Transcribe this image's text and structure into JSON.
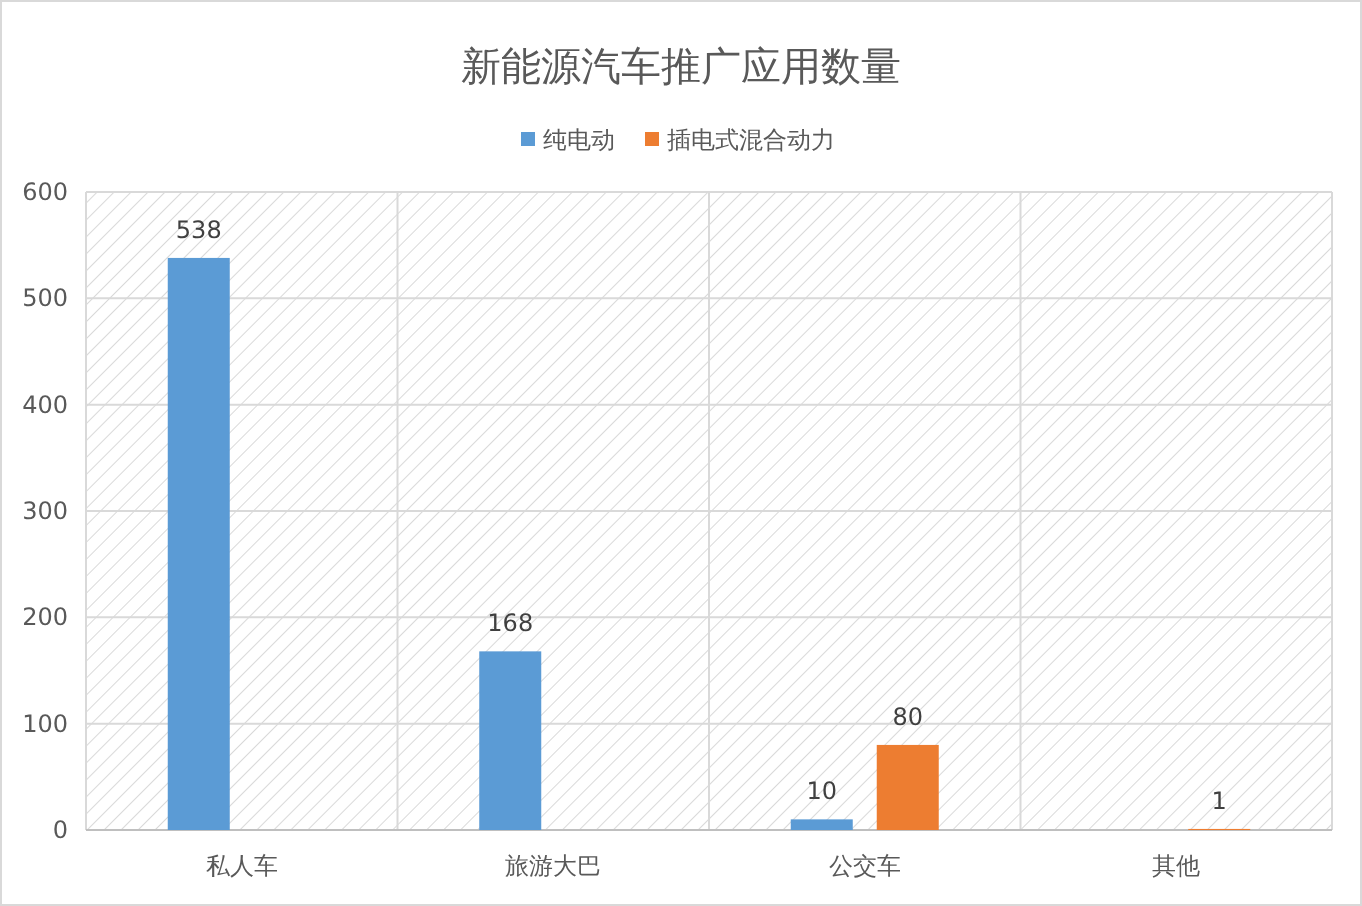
{
  "chart_data": {
    "type": "bar",
    "title": "新能源汽车推广应用数量",
    "categories": [
      "私人车",
      "旅游大巴",
      "公交车",
      "其他"
    ],
    "series": [
      {
        "name": "纯电动",
        "color": "#5b9bd5",
        "values": [
          538,
          168,
          10,
          null
        ]
      },
      {
        "name": "插电式混合动力",
        "color": "#ed7d31",
        "values": [
          null,
          null,
          80,
          1
        ]
      }
    ],
    "ylim": [
      0,
      600
    ],
    "yticks": [
      0,
      100,
      200,
      300,
      400,
      500,
      600
    ],
    "grid": true,
    "legend": "top",
    "data_labels": true
  }
}
